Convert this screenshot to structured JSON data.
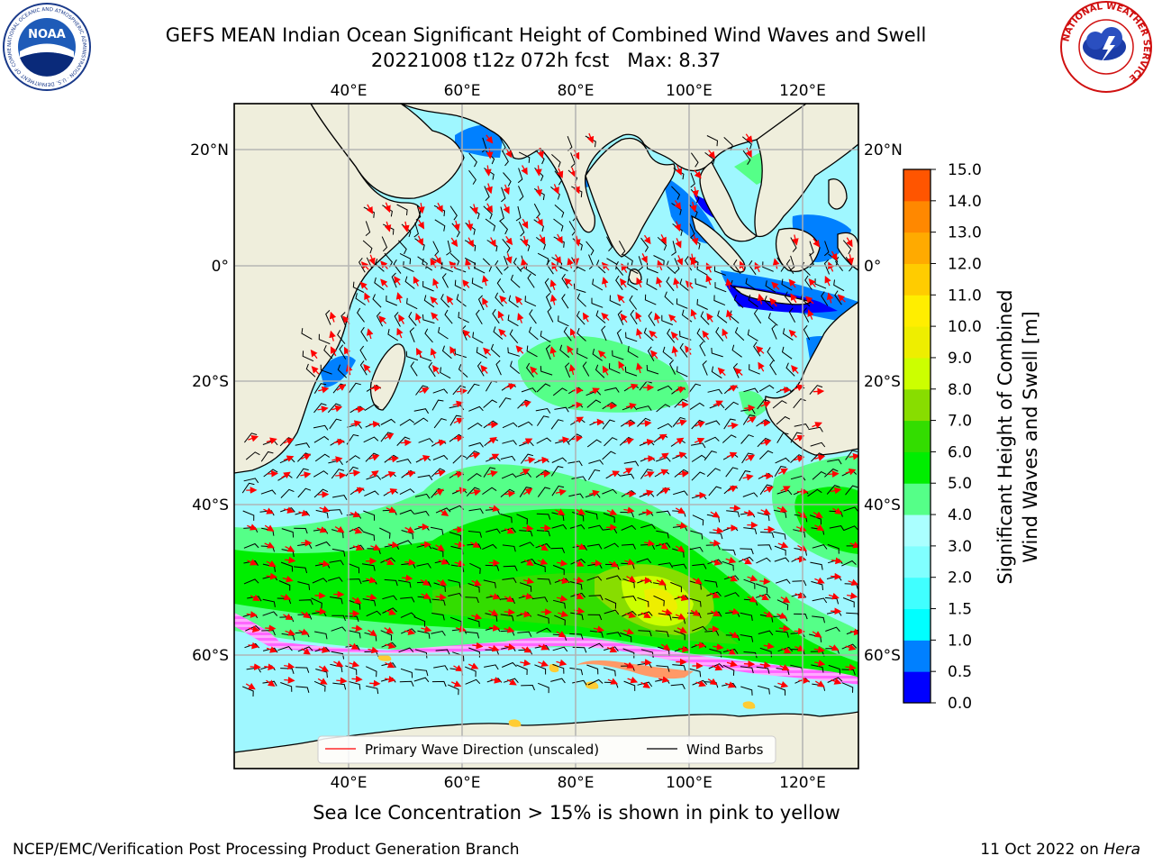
{
  "title": {
    "line1": "GEFS MEAN Indian Ocean Significant Height of Combined Wind Waves and Swell",
    "line2": "20221008 t12z 072h fcst   Max: 8.37"
  },
  "map": {
    "lon_ticks": [
      "40°E",
      "60°E",
      "80°E",
      "100°E",
      "120°E"
    ],
    "lat_ticks_left": [
      "20°N",
      "0°",
      "20°S",
      "40°S",
      "60°S"
    ],
    "lat_ticks_right": [
      "20°N",
      "0°",
      "20°S",
      "40°S",
      "60°S"
    ],
    "legend": {
      "wave_direction": "Primary Wave Direction (unscaled)",
      "wind_barbs": "Wind Barbs"
    },
    "colors": {
      "land": "#efeedc",
      "ocean_default": "#9ff7ff",
      "wave_arrow": "#ff0000",
      "barb": "#000000",
      "grid": "#b0b0b0"
    },
    "ice_colors": [
      "#ff66ff",
      "#ff9966",
      "#ffcc33"
    ]
  },
  "colorbar": {
    "label_line1": "Significant Height of Combined",
    "label_line2": "Wind Waves and Swell [m]",
    "levels": [
      "0.0",
      "0.5",
      "1.0",
      "1.5",
      "2.0",
      "3.0",
      "4.0",
      "5.0",
      "6.0",
      "7.0",
      "8.0",
      "9.0",
      "10.0",
      "11.0",
      "12.0",
      "13.0",
      "14.0",
      "15.0"
    ],
    "colors": [
      "#0000ff",
      "#0080ff",
      "#00ffff",
      "#40ffff",
      "#80ffff",
      "#aaffff",
      "#55ff88",
      "#00ee00",
      "#33dd00",
      "#88dd00",
      "#ccff00",
      "#eeee00",
      "#ffee00",
      "#ffcc00",
      "#ffaa00",
      "#ff8800",
      "#ff5500",
      "#ff2200",
      "#ff0000"
    ]
  },
  "caption": "Sea Ice Concentration > 15% is shown in pink to yellow",
  "footer": {
    "left": "NCEP/EMC/Verification Post Processing Product Generation Branch",
    "date": "11 Oct 2022 on ",
    "host": "Hera"
  },
  "logos": {
    "noaa_text": "NOAA",
    "noaa_ring": "NATIONAL OCEANIC AND ATMOSPHERIC ADMINISTRATION · U.S. DEPARTMENT OF COMMERCE",
    "nws_ring": "NATIONAL WEATHER SERVICE"
  }
}
